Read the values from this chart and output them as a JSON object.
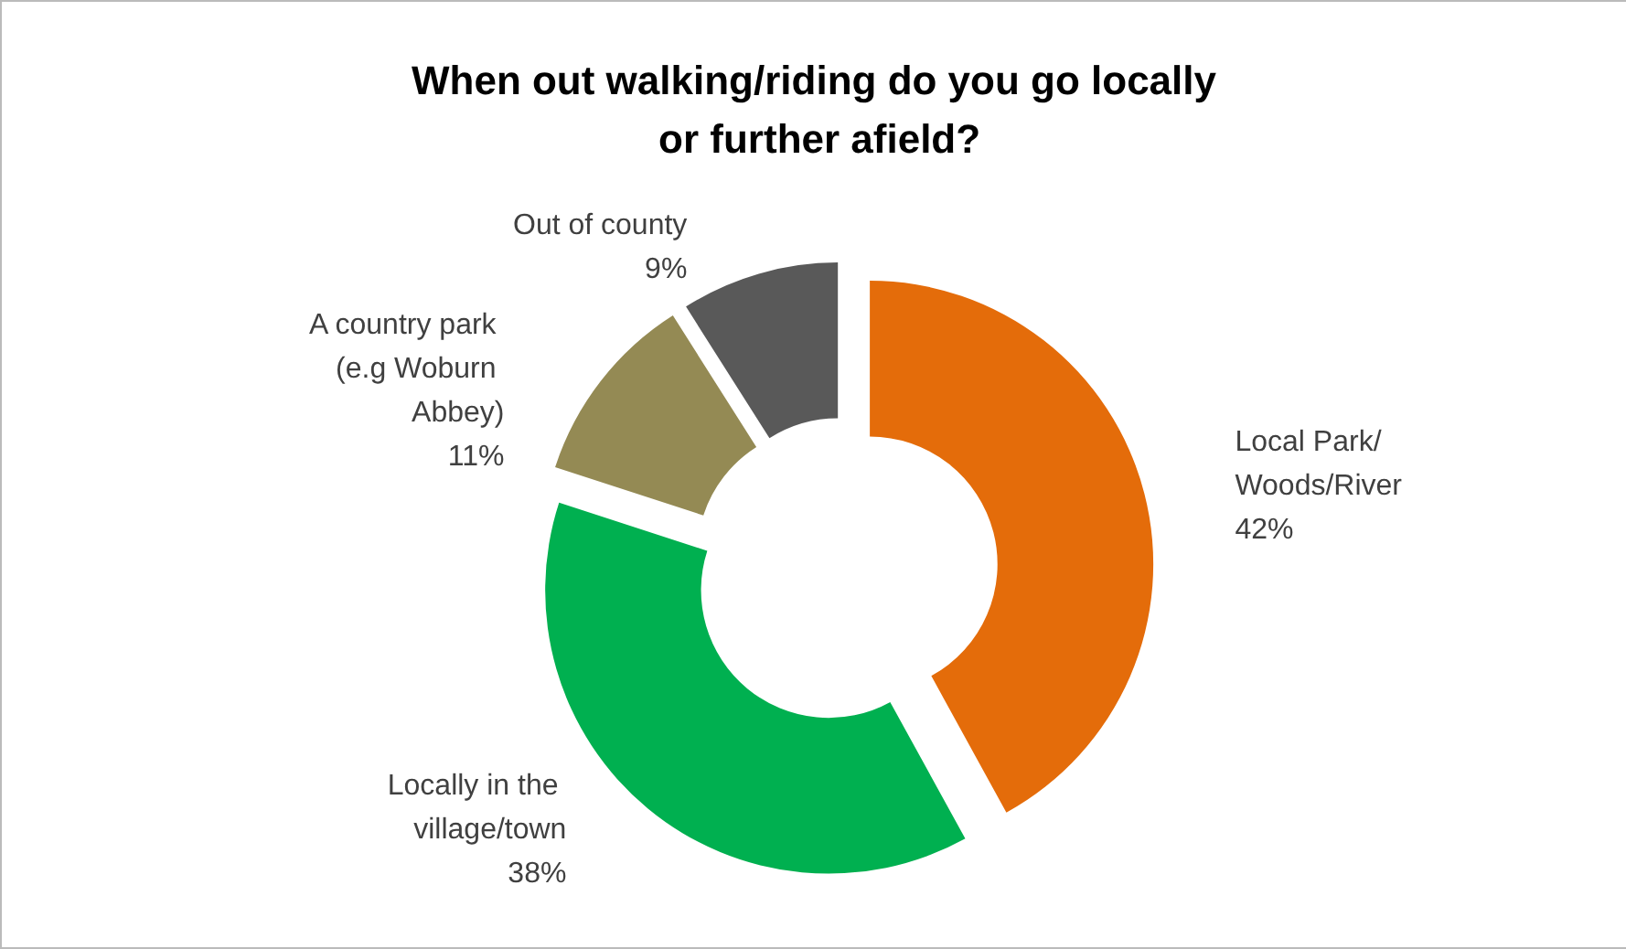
{
  "chart_data": {
    "type": "donut",
    "title": "When out walking/riding do you go locally or further afield?",
    "categories": [
      "Local Park/ Woods/River",
      "Locally in the village/town",
      "A country park (e.g Woburn Abbey)",
      "Out of county"
    ],
    "value_labels": [
      "42%",
      "38%",
      "11%",
      "9%"
    ],
    "values": [
      42,
      38,
      11,
      9
    ],
    "colors": [
      "#e46c0a",
      "#00b050",
      "#948a54",
      "#595959"
    ],
    "data_labels": true,
    "legend": false
  }
}
